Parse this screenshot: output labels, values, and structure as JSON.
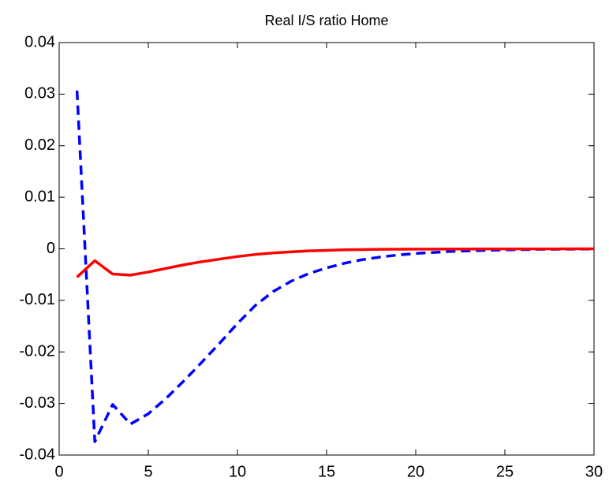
{
  "chart_data": {
    "type": "line",
    "title": "Real I/S ratio Home",
    "x": [
      1,
      2,
      3,
      4,
      5,
      6,
      7,
      8,
      9,
      10,
      11,
      12,
      13,
      14,
      15,
      16,
      17,
      18,
      19,
      20,
      21,
      22,
      23,
      24,
      25,
      26,
      27,
      28,
      29,
      30
    ],
    "series": [
      {
        "color": "#0000ff",
        "dashed": true,
        "values": [
          0.0307,
          -0.0374,
          -0.0302,
          -0.034,
          -0.032,
          -0.029,
          -0.0256,
          -0.022,
          -0.0183,
          -0.0145,
          -0.011,
          -0.0083,
          -0.0063,
          -0.0048,
          -0.0037,
          -0.0028,
          -0.0021,
          -0.0016,
          -0.0012,
          -0.0009,
          -0.0007,
          -0.0005,
          -0.0004,
          -0.0003,
          -0.0002,
          -0.00015,
          -0.0001,
          -8e-05,
          -6e-05,
          -4e-05
        ]
      },
      {
        "color": "#ff0000",
        "dashed": false,
        "values": [
          -0.0055,
          -0.0023,
          -0.0049,
          -0.0051,
          -0.0045,
          -0.0038,
          -0.0031,
          -0.0025,
          -0.002,
          -0.0015,
          -0.0011,
          -0.0008,
          -0.0006,
          -0.0004,
          -0.0003,
          -0.0002,
          -0.00015,
          -0.0001,
          -8e-05,
          -6e-05,
          -5e-05,
          -4e-05,
          -3e-05,
          -2e-05,
          -2e-05,
          -1e-05,
          -1e-05,
          -1e-05,
          0,
          0
        ]
      }
    ],
    "xlim": [
      0,
      30
    ],
    "xticks": [
      0,
      5,
      10,
      15,
      20,
      25,
      30
    ],
    "ylim": [
      -0.04,
      0.04
    ],
    "yticks": [
      -0.04,
      -0.03,
      -0.02,
      -0.01,
      0,
      0.01,
      0.02,
      0.03,
      0.04
    ],
    "grid": false
  }
}
